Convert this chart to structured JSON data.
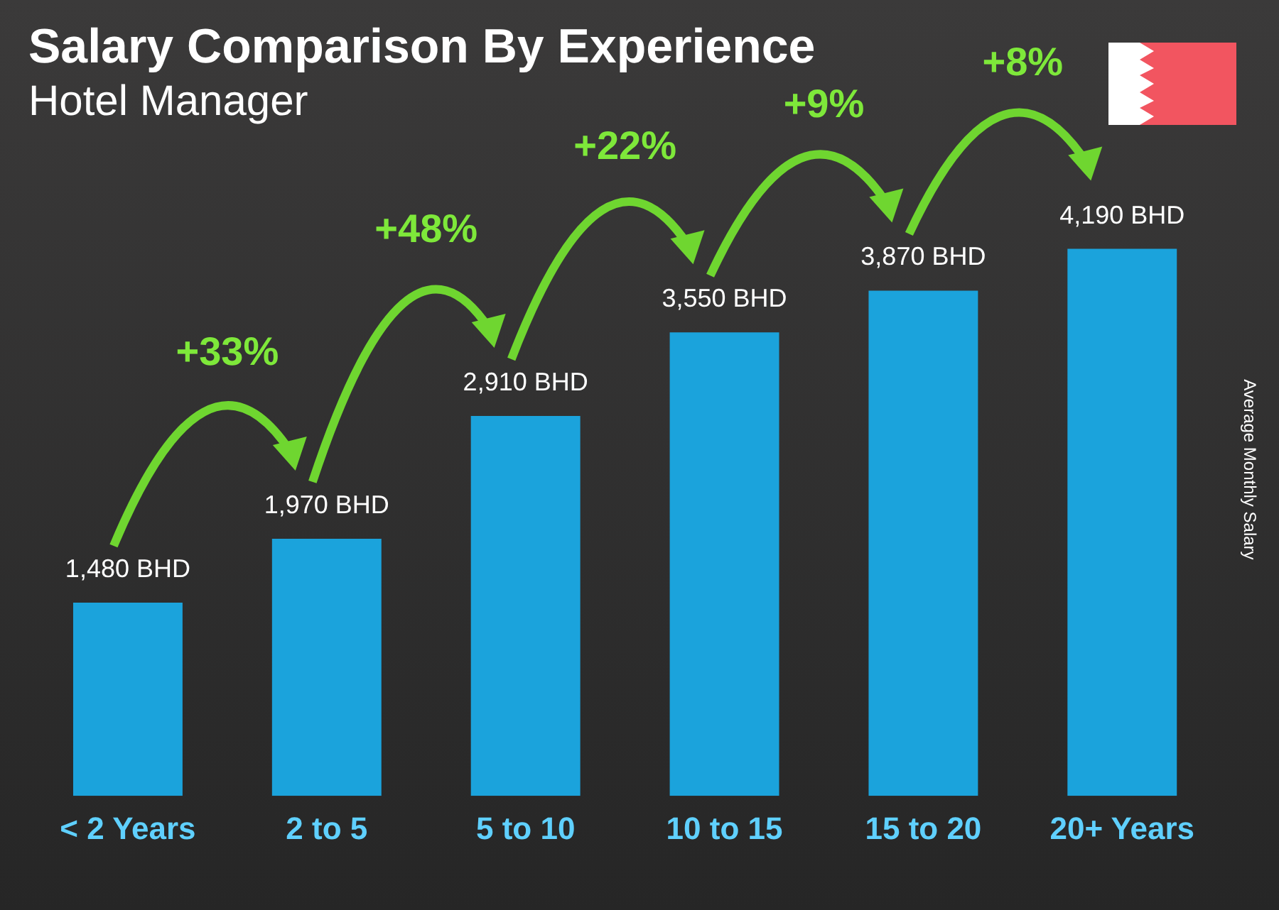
{
  "chart_data": {
    "type": "bar",
    "title": "Salary Comparison By Experience",
    "subtitle": "Hotel Manager",
    "ylabel": "Average Monthly Salary",
    "categories": [
      "< 2 Years",
      "2 to 5",
      "5 to 10",
      "10 to 15",
      "15 to 20",
      "20+ Years"
    ],
    "values": [
      1480,
      1970,
      2910,
      3550,
      3870,
      4190
    ],
    "value_labels": [
      "1,480 BHD",
      "1,970 BHD",
      "2,910 BHD",
      "3,550 BHD",
      "3,870 BHD",
      "4,190 BHD"
    ],
    "color": "#1ba3dc",
    "tick_labels": "x",
    "grid": false,
    "legend": false,
    "annotations": [
      "+33%",
      "+48%",
      "+22%",
      "+9%",
      "+8%"
    ]
  }
}
